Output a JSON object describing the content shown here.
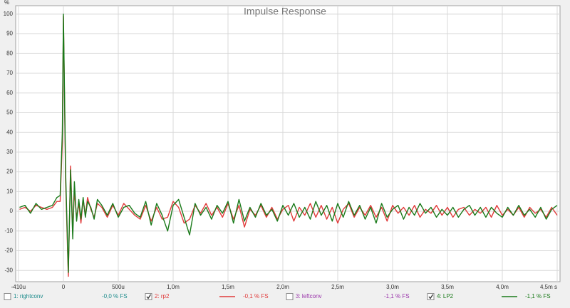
{
  "chart_data": {
    "type": "line",
    "title": "Impulse Response",
    "y_label": "%",
    "x": [
      -0.4,
      -0.35,
      -0.3,
      -0.25,
      -0.2,
      -0.15,
      -0.1,
      -0.06,
      -0.03,
      -0.01,
      0,
      0.02,
      0.045,
      0.065,
      0.085,
      0.1,
      0.12,
      0.14,
      0.16,
      0.18,
      0.2,
      0.22,
      0.25,
      0.28,
      0.31,
      0.35,
      0.4,
      0.45,
      0.5,
      0.55,
      0.6,
      0.65,
      0.7,
      0.75,
      0.8,
      0.85,
      0.9,
      0.95,
      1.0,
      1.05,
      1.1,
      1.15,
      1.2,
      1.25,
      1.3,
      1.35,
      1.4,
      1.45,
      1.5,
      1.55,
      1.6,
      1.65,
      1.7,
      1.75,
      1.8,
      1.85,
      1.9,
      1.95,
      2.0,
      2.05,
      2.1,
      2.15,
      2.2,
      2.25,
      2.3,
      2.35,
      2.4,
      2.45,
      2.5,
      2.55,
      2.6,
      2.65,
      2.7,
      2.75,
      2.8,
      2.85,
      2.9,
      2.95,
      3.0,
      3.05,
      3.1,
      3.15,
      3.2,
      3.25,
      3.3,
      3.35,
      3.4,
      3.45,
      3.5,
      3.55,
      3.6,
      3.65,
      3.7,
      3.75,
      3.8,
      3.85,
      3.9,
      3.95,
      4.0,
      4.05,
      4.1,
      4.15,
      4.2,
      4.25,
      4.3,
      4.35,
      4.4,
      4.45,
      4.5
    ],
    "series": [
      {
        "name": "1: rightconv",
        "color": "#1e8c8c",
        "readout": "-0,0 % FS",
        "checked": false
      },
      {
        "name": "2: rp2",
        "color": "#e03a3a",
        "readout": "-0,1 % FS",
        "checked": true,
        "values": [
          1,
          2,
          0,
          3,
          2,
          1,
          2,
          5,
          5,
          35,
          99,
          15,
          -33,
          23,
          -10,
          10,
          -3,
          4,
          -6,
          6,
          -2,
          7,
          1,
          -3,
          4,
          2,
          -3,
          3,
          -2,
          4,
          1,
          -2,
          -4,
          3,
          -5,
          2,
          -4,
          -3,
          5,
          2,
          -6,
          -4,
          3,
          -1,
          4,
          -2,
          2,
          -3,
          4,
          -4,
          3,
          -8,
          1,
          -2,
          3,
          -3,
          2,
          -4,
          1,
          3,
          -5,
          2,
          -2,
          4,
          -3,
          3,
          -4,
          2,
          -6,
          1,
          4,
          -3,
          2,
          -2,
          3,
          -3,
          2,
          -5,
          3,
          -1,
          2,
          -2,
          3,
          -3,
          1,
          -1,
          3,
          -2,
          2,
          -3,
          1,
          2,
          -2,
          1,
          -1,
          2,
          -3,
          3,
          -2,
          1,
          -2,
          2,
          -3,
          2,
          -1,
          1,
          -3,
          2,
          -2
        ],
        "axis": "y"
      },
      {
        "name": "3: leftconv",
        "color": "#9933aa",
        "readout": "-1,1 % FS",
        "checked": false
      },
      {
        "name": "4: LP2",
        "color": "#1a7a1a",
        "readout": "-1,1 % FS",
        "checked": true,
        "values": [
          2,
          3,
          -1,
          4,
          1,
          2,
          3,
          7,
          8,
          40,
          100,
          20,
          -31,
          21,
          -14,
          15,
          -5,
          6,
          -4,
          7,
          -3,
          5,
          2,
          -4,
          6,
          3,
          -2,
          4,
          -3,
          2,
          3,
          -1,
          -3,
          5,
          -7,
          4,
          -2,
          -10,
          3,
          6,
          -3,
          -12,
          4,
          -2,
          2,
          -4,
          3,
          -1,
          5,
          -6,
          6,
          -5,
          2,
          -3,
          4,
          -2,
          1,
          -5,
          3,
          -2,
          4,
          -3,
          2,
          -4,
          5,
          -2,
          3,
          -5,
          4,
          -3,
          5,
          -2,
          3,
          -4,
          2,
          -6,
          4,
          -3,
          1,
          3,
          -4,
          2,
          -2,
          4,
          -1,
          2,
          -3,
          1,
          -2,
          2,
          -3,
          1,
          3,
          -2,
          2,
          -3,
          2,
          -1,
          -3,
          2,
          -2,
          3,
          -2,
          1,
          -3,
          2,
          -4,
          1,
          3
        ]
      }
    ],
    "xlim": [
      -0.435,
      4.526
    ],
    "xticks": [
      {
        "value": -0.41,
        "label": "-410u"
      },
      0,
      {
        "value": 0.5,
        "label": "500u"
      },
      {
        "value": 1.0,
        "label": "1,0m"
      },
      {
        "value": 1.5,
        "label": "1,5m"
      },
      {
        "value": 2.0,
        "label": "2,0m"
      },
      {
        "value": 2.5,
        "label": "2,5m"
      },
      {
        "value": 3.0,
        "label": "3,0m"
      },
      {
        "value": 3.5,
        "label": "3,5m"
      },
      {
        "value": 4.0,
        "label": "4,0m"
      },
      {
        "value": 4.5,
        "label": "4,5m s"
      }
    ],
    "ylim": [
      -35.7,
      104.3
    ],
    "yticks": [
      100,
      90,
      80,
      70,
      60,
      50,
      40,
      30,
      20,
      10,
      0,
      -10,
      -20,
      -30
    ],
    "grid": true
  }
}
